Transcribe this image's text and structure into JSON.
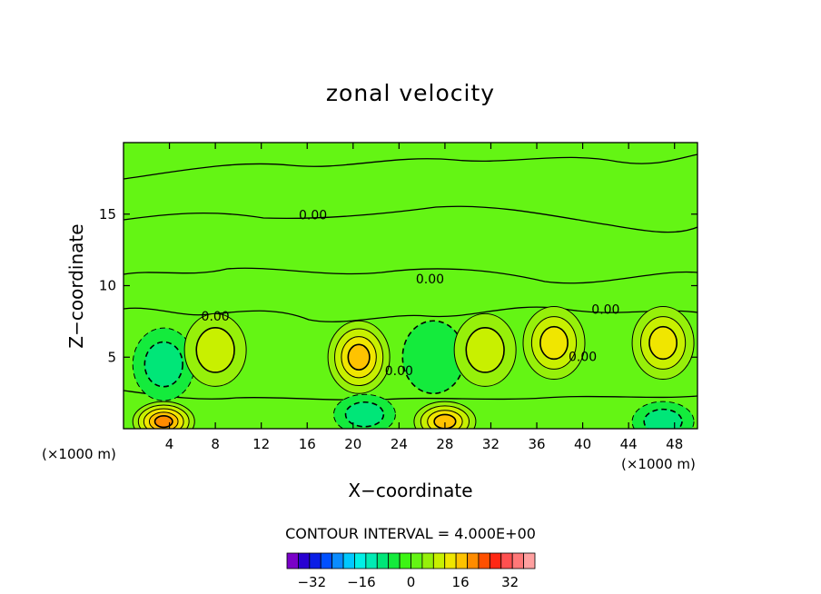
{
  "chart_data": {
    "type": "heatmap",
    "title": "zonal velocity",
    "xlabel": "X−coordinate",
    "ylabel": "Z−coordinate",
    "x_unit_label": "(×1000 m)",
    "xlim": [
      0,
      50
    ],
    "ylim": [
      0,
      20
    ],
    "x_ticks": [
      4,
      8,
      12,
      16,
      20,
      24,
      28,
      32,
      36,
      40,
      44,
      48
    ],
    "y_ticks": [
      5,
      10,
      15
    ],
    "contour_interval_text": "CONTOUR INTERVAL = 4.000E+00",
    "contour_labels": [
      {
        "text": "0.00",
        "x": 16.5,
        "y": 14.9
      },
      {
        "text": "0.00",
        "x": 26.7,
        "y": 10.4
      },
      {
        "text": "0.00",
        "x": 8.0,
        "y": 7.8
      },
      {
        "text": "0.00",
        "x": 42.0,
        "y": 8.3
      },
      {
        "text": "0.00",
        "x": 40.0,
        "y": 5.0
      },
      {
        "text": "0.00",
        "x": 24.0,
        "y": 4.0
      }
    ],
    "colorbar": {
      "tick_labels": [
        "−32",
        "−16",
        "0",
        "16",
        "32"
      ],
      "tick_values": [
        -32,
        -16,
        0,
        16,
        32
      ],
      "levels": [
        -40,
        40
      ],
      "colors": [
        "#7a00c8",
        "#2800d2",
        "#0a1ee6",
        "#0050ff",
        "#0a8cff",
        "#00c8ff",
        "#00f0e6",
        "#00ebb4",
        "#00e678",
        "#14eb3c",
        "#3cf514",
        "#64f514",
        "#96f00a",
        "#c8f000",
        "#f0e600",
        "#ffc300",
        "#ff8c00",
        "#ff5000",
        "#ff2814",
        "#ff5050",
        "#ff7878",
        "#ffa0a0"
      ]
    },
    "regions": [
      {
        "x": 3.5,
        "y": 4.5,
        "value": -8
      },
      {
        "x": 8.0,
        "y": 5.5,
        "value": 8
      },
      {
        "x": 20.5,
        "y": 5.0,
        "value": 16
      },
      {
        "x": 27.0,
        "y": 5.0,
        "value": -4
      },
      {
        "x": 31.5,
        "y": 5.5,
        "value": 8
      },
      {
        "x": 37.5,
        "y": 6.0,
        "value": 12
      },
      {
        "x": 47.0,
        "y": 6.0,
        "value": 12
      },
      {
        "x": 3.5,
        "y": 0.5,
        "value": 20
      },
      {
        "x": 28.0,
        "y": 0.5,
        "value": 16
      },
      {
        "x": 21.0,
        "y": 1.0,
        "value": -8
      },
      {
        "x": 47.0,
        "y": 0.5,
        "value": -8
      }
    ]
  }
}
